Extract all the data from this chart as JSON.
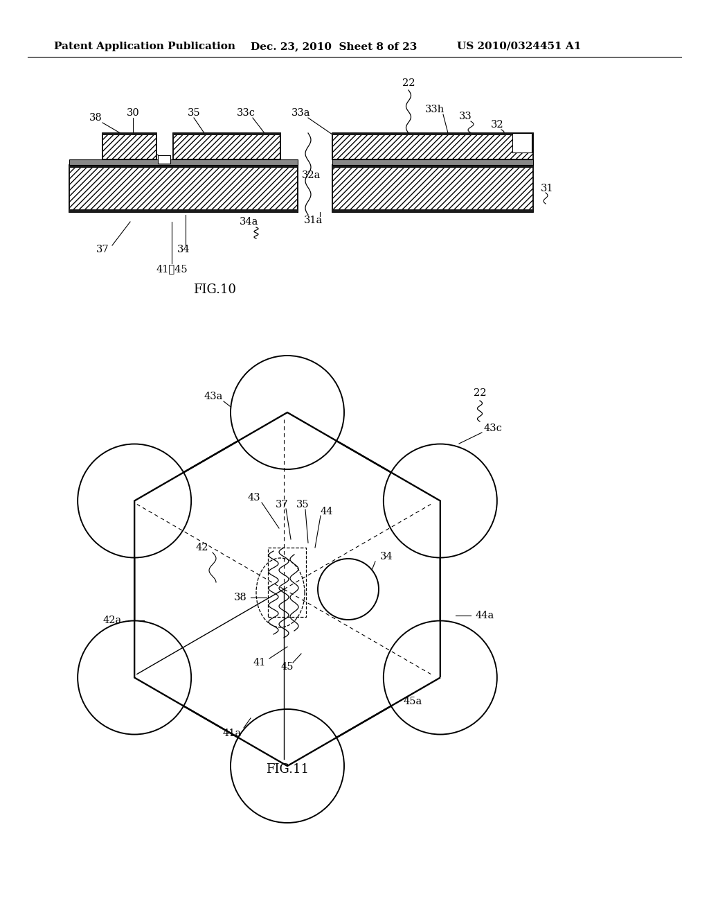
{
  "bg_color": "#ffffff",
  "header_left": "Patent Application Publication",
  "header_mid": "Dec. 23, 2010  Sheet 8 of 23",
  "header_right": "US 2010/0324451 A1",
  "fig10_label": "FIG.10",
  "fig11_label": "FIG.11"
}
